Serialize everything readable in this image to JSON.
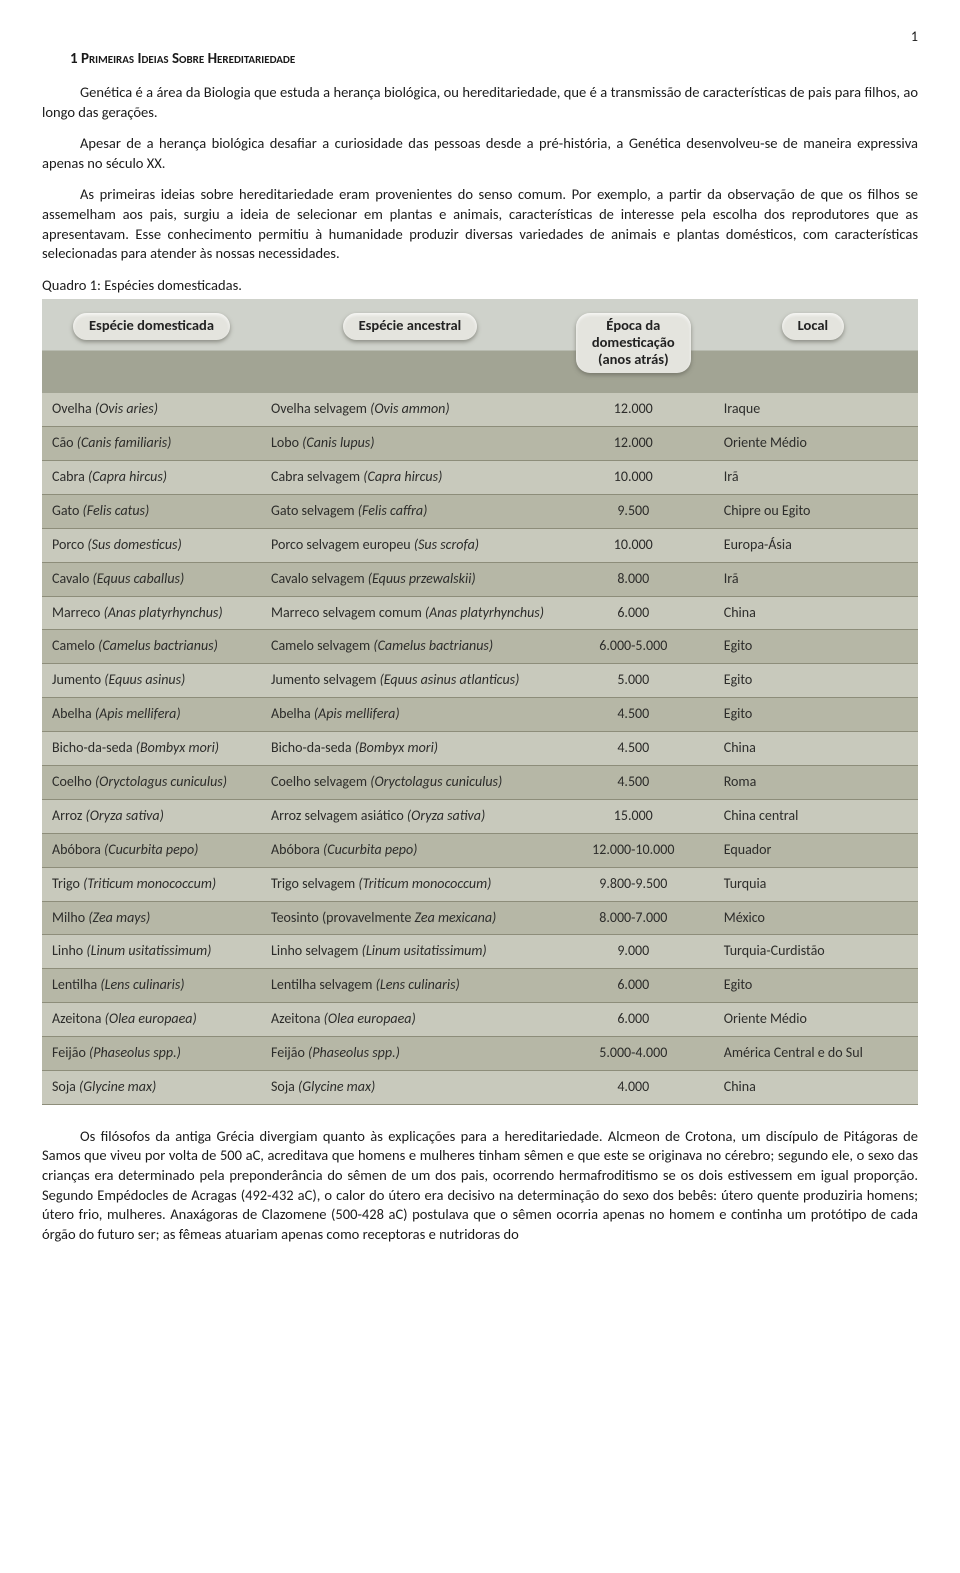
{
  "page_number": "1",
  "section_title": "1 Primeiras Ideias Sobre Hereditariedade",
  "paragraph1": "Genética é a área da Biologia que estuda a herança biológica, ou hereditariedade, que é a transmissão de características de pais para filhos, ao longo das gerações.",
  "paragraph2": "Apesar de a herança biológica desafiar a curiosidade das pessoas desde a pré-história, a Genética desenvolveu-se de maneira expressiva apenas no século XX.",
  "paragraph3": "As primeiras ideias sobre hereditariedade eram provenientes do senso comum. Por exemplo, a partir da observação de que os filhos se assemelham aos pais, surgiu a ideia de selecionar em plantas e animais, características de interesse pela escolha dos reprodutores que as apresentavam. Esse conhecimento permitiu à humanidade produzir diversas variedades de animais e plantas domésticos, com características selecionadas para atender às nossas necessidades.",
  "table_caption": "Quadro 1: Espécies domesticadas.",
  "table": {
    "headers": {
      "h1": "Espécie domesticada",
      "h2": "Espécie ancestral",
      "h3a": "Época da",
      "h3b": "domesticação",
      "h3c": "(anos atrás)",
      "h4": "Local"
    },
    "rows": [
      {
        "dom_n": "Ovelha",
        "dom_s": "(Ovis aries)",
        "anc_n": "Ovelha selvagem",
        "anc_s": "(Ovis ammon)",
        "epoca": "12.000",
        "local": "Iraque"
      },
      {
        "dom_n": "Cão",
        "dom_s": "(Canis familiaris)",
        "anc_n": "Lobo",
        "anc_s": "(Canis lupus)",
        "epoca": "12.000",
        "local": "Oriente Médio"
      },
      {
        "dom_n": "Cabra",
        "dom_s": "(Capra hircus)",
        "anc_n": "Cabra selvagem",
        "anc_s": "(Capra hircus)",
        "epoca": "10.000",
        "local": "Irã"
      },
      {
        "dom_n": "Gato",
        "dom_s": "(Felis catus)",
        "anc_n": "Gato selvagem",
        "anc_s": "(Felis caffra)",
        "epoca": "9.500",
        "local": "Chipre ou Egito"
      },
      {
        "dom_n": "Porco",
        "dom_s": "(Sus domesticus)",
        "anc_n": "Porco selvagem europeu",
        "anc_s": "(Sus scrofa)",
        "epoca": "10.000",
        "local": "Europa-Ásia"
      },
      {
        "dom_n": "Cavalo",
        "dom_s": "(Equus caballus)",
        "anc_n": "Cavalo selvagem",
        "anc_s": "(Equus przewalskii)",
        "epoca": "8.000",
        "local": "Irã"
      },
      {
        "dom_n": "Marreco",
        "dom_s": "(Anas platyrhynchus)",
        "anc_n": "Marreco selvagem comum",
        "anc_s": "(Anas platyrhynchus)",
        "epoca": "6.000",
        "local": "China"
      },
      {
        "dom_n": "Camelo",
        "dom_s": "(Camelus bactrianus)",
        "anc_n": "Camelo selvagem",
        "anc_s": "(Camelus bactrianus)",
        "epoca": "6.000-5.000",
        "local": "Egito"
      },
      {
        "dom_n": "Jumento",
        "dom_s": "(Equus asinus)",
        "anc_n": "Jumento selvagem",
        "anc_s": "(Equus asinus atlanticus)",
        "epoca": "5.000",
        "local": "Egito"
      },
      {
        "dom_n": "Abelha",
        "dom_s": "(Apis mellifera)",
        "anc_n": "Abelha",
        "anc_s": "(Apis mellifera)",
        "epoca": "4.500",
        "local": "Egito"
      },
      {
        "dom_n": "Bicho-da-seda",
        "dom_s": "(Bombyx mori)",
        "anc_n": "Bicho-da-seda",
        "anc_s": "(Bombyx mori)",
        "epoca": "4.500",
        "local": "China"
      },
      {
        "dom_n": "Coelho",
        "dom_s": "(Oryctolagus cuniculus)",
        "anc_n": "Coelho selvagem",
        "anc_s": "(Oryctolagus cuniculus)",
        "epoca": "4.500",
        "local": "Roma"
      },
      {
        "dom_n": "Arroz",
        "dom_s": "(Oryza sativa)",
        "anc_n": "Arroz selvagem asiático",
        "anc_s": "(Oryza sativa)",
        "epoca": "15.000",
        "local": "China central"
      },
      {
        "dom_n": "Abóbora",
        "dom_s": "(Cucurbita pepo)",
        "anc_n": "Abóbora",
        "anc_s": "(Cucurbita pepo)",
        "epoca": "12.000-10.000",
        "local": "Equador"
      },
      {
        "dom_n": "Trigo",
        "dom_s": "(Triticum monococcum)",
        "anc_n": "Trigo selvagem",
        "anc_s": "(Triticum monococcum)",
        "epoca": "9.800-9.500",
        "local": "Turquia"
      },
      {
        "dom_n": "Milho",
        "dom_s": "(Zea mays)",
        "anc_n": "Teosinto (provavelmente",
        "anc_s": "Zea mexicana)",
        "epoca": "8.000-7.000",
        "local": "México"
      },
      {
        "dom_n": "Linho",
        "dom_s": "(Linum usitatissimum)",
        "anc_n": "Linho selvagem",
        "anc_s": "(Linum usitatissimum)",
        "epoca": "9.000",
        "local": "Turquia-Curdistão"
      },
      {
        "dom_n": "Lentilha",
        "dom_s": "(Lens culinaris)",
        "anc_n": "Lentilha selvagem",
        "anc_s": "(Lens culinaris)",
        "epoca": "6.000",
        "local": "Egito"
      },
      {
        "dom_n": "Azeitona",
        "dom_s": "(Olea europaea)",
        "anc_n": "Azeitona",
        "anc_s": "(Olea europaea)",
        "epoca": "6.000",
        "local": "Oriente Médio"
      },
      {
        "dom_n": "Feijão",
        "dom_s": "(Phaseolus spp.)",
        "anc_n": "Feijão",
        "anc_s": "(Phaseolus spp.)",
        "epoca": "5.000-4.000",
        "local": "América Central e do Sul"
      },
      {
        "dom_n": "Soja",
        "dom_s": "(Glycine max)",
        "anc_n": "Soja",
        "anc_s": "(Glycine max)",
        "epoca": "4.000",
        "local": "China"
      }
    ],
    "header_bg_top": "#cfd2cb",
    "header_bg_bottom": "#a2a494",
    "row_odd_bg": "#c8c9bc",
    "row_even_bg": "#b6b7a6",
    "border_color": "#8d8d7a",
    "pill_bg": "#e4e4de"
  },
  "paragraph4": "Os filósofos da antiga Grécia divergiam quanto às explicações para a hereditariedade. Alcmeon de Crotona, um discípulo de Pitágoras de Samos que viveu por volta de 500 aC, acreditava que homens e mulheres tinham  sêmen e que este se originava no cérebro; segundo ele, o sexo das crianças era determinado pela preponderância do sêmen de um dos pais, ocorrendo hermafroditismo se os dois estivessem em igual proporção. Segundo Empédocles de Acragas (492-432 aC), o calor do útero era decisivo na determinação do sexo dos bebês: útero quente produziria homens; útero frio, mulheres. Anaxágoras de Clazomene (500-428 aC) postulava que o sêmen ocorria apenas no homem e continha um protótipo de cada órgão do futuro ser; as fêmeas atuariam apenas como receptoras e nutridoras do"
}
